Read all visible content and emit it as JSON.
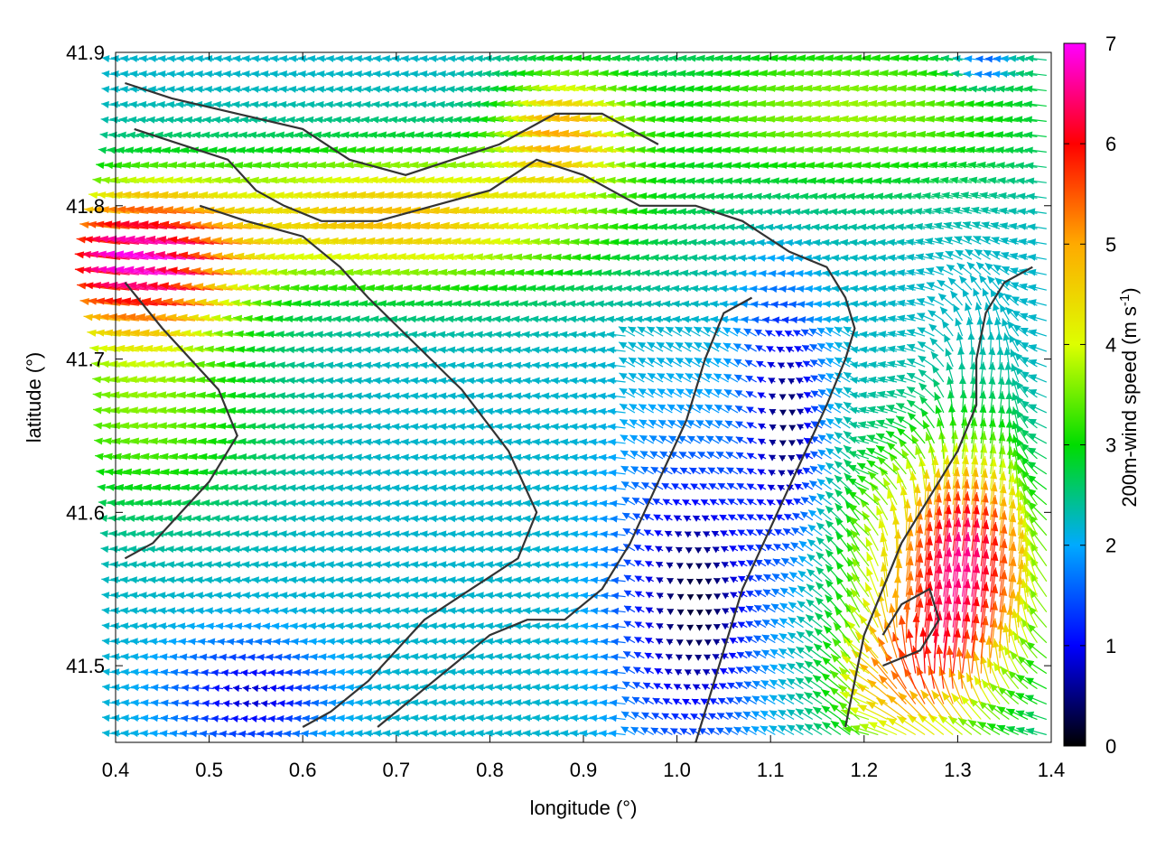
{
  "chart_data": {
    "type": "vector-field",
    "title": "",
    "xlabel": "longitude (°)",
    "ylabel": "latitude (°)",
    "xlim": [
      0.4,
      1.4
    ],
    "ylim": [
      41.45,
      41.9
    ],
    "xticks": [
      "0.4",
      "0.5",
      "0.6",
      "0.7",
      "0.8",
      "0.9",
      "1.0",
      "1.1",
      "1.2",
      "1.3",
      "1.4"
    ],
    "yticks": [
      "41.5",
      "41.6",
      "41.7",
      "41.8",
      "41.9"
    ],
    "colorbar": {
      "label": "200m-wind speed (m s",
      "label_sup": "-1",
      "label_end": ")",
      "range": [
        0,
        7
      ],
      "ticks": [
        "0",
        "1",
        "2",
        "3",
        "4",
        "5",
        "6",
        "7"
      ],
      "palette": [
        "#000000",
        "#0000ff",
        "#00aaff",
        "#00dd00",
        "#ddff00",
        "#ffaa00",
        "#ff0000",
        "#ff00ff"
      ]
    },
    "grid": {
      "x_step_deg": 0.01,
      "y_step_deg": 0.01
    },
    "wind_regions": [
      {
        "name": "strong westward jet NW",
        "speed_ms": 6.5,
        "direction": "west"
      },
      {
        "name": "orange band center",
        "speed_ms": 4.5,
        "direction": "west"
      },
      {
        "name": "weak valley center",
        "speed_ms": 0.5,
        "direction": "variable"
      },
      {
        "name": "strong northward SE",
        "speed_ms": 6.5,
        "direction": "north"
      }
    ],
    "contours": [
      [
        [
          0.41,
          41.88
        ],
        [
          0.46,
          41.87
        ],
        [
          0.53,
          41.86
        ],
        [
          0.6,
          41.85
        ],
        [
          0.65,
          41.83
        ],
        [
          0.71,
          41.82
        ],
        [
          0.76,
          41.83
        ],
        [
          0.81,
          41.84
        ],
        [
          0.87,
          41.86
        ],
        [
          0.92,
          41.86
        ],
        [
          0.95,
          41.85
        ],
        [
          0.98,
          41.84
        ]
      ],
      [
        [
          0.42,
          41.85
        ],
        [
          0.47,
          41.84
        ],
        [
          0.52,
          41.83
        ],
        [
          0.55,
          41.81
        ],
        [
          0.58,
          41.8
        ],
        [
          0.62,
          41.79
        ],
        [
          0.68,
          41.79
        ],
        [
          0.74,
          41.8
        ],
        [
          0.8,
          41.81
        ],
        [
          0.85,
          41.83
        ],
        [
          0.9,
          41.82
        ],
        [
          0.96,
          41.8
        ],
        [
          1.02,
          41.8
        ],
        [
          1.07,
          41.79
        ],
        [
          1.12,
          41.77
        ],
        [
          1.16,
          41.76
        ],
        [
          1.18,
          41.74
        ],
        [
          1.19,
          41.72
        ],
        [
          1.18,
          41.7
        ],
        [
          1.16,
          41.67
        ],
        [
          1.13,
          41.63
        ],
        [
          1.1,
          41.59
        ],
        [
          1.07,
          41.55
        ],
        [
          1.05,
          41.51
        ],
        [
          1.03,
          41.47
        ],
        [
          1.02,
          41.45
        ]
      ],
      [
        [
          0.41,
          41.75
        ],
        [
          0.45,
          41.72
        ],
        [
          0.48,
          41.7
        ],
        [
          0.51,
          41.68
        ],
        [
          0.53,
          41.65
        ],
        [
          0.5,
          41.62
        ],
        [
          0.47,
          41.6
        ],
        [
          0.44,
          41.58
        ],
        [
          0.41,
          41.57
        ]
      ],
      [
        [
          0.49,
          41.8
        ],
        [
          0.54,
          41.79
        ],
        [
          0.6,
          41.78
        ],
        [
          0.64,
          41.76
        ],
        [
          0.67,
          41.74
        ],
        [
          0.72,
          41.71
        ],
        [
          0.77,
          41.68
        ],
        [
          0.82,
          41.64
        ],
        [
          0.85,
          41.6
        ],
        [
          0.83,
          41.57
        ],
        [
          0.78,
          41.55
        ],
        [
          0.73,
          41.53
        ],
        [
          0.7,
          41.51
        ],
        [
          0.67,
          41.49
        ],
        [
          0.63,
          41.47
        ],
        [
          0.6,
          41.46
        ]
      ],
      [
        [
          0.68,
          41.46
        ],
        [
          0.72,
          41.48
        ],
        [
          0.76,
          41.5
        ],
        [
          0.8,
          41.52
        ],
        [
          0.84,
          41.53
        ],
        [
          0.88,
          41.53
        ],
        [
          0.92,
          41.55
        ],
        [
          0.95,
          41.58
        ],
        [
          0.98,
          41.62
        ],
        [
          1.01,
          41.66
        ],
        [
          1.03,
          41.7
        ],
        [
          1.05,
          41.73
        ],
        [
          1.08,
          41.74
        ]
      ],
      [
        [
          1.38,
          41.76
        ],
        [
          1.35,
          41.75
        ],
        [
          1.33,
          41.73
        ],
        [
          1.32,
          41.7
        ],
        [
          1.32,
          41.67
        ],
        [
          1.3,
          41.64
        ],
        [
          1.27,
          41.61
        ],
        [
          1.24,
          41.58
        ],
        [
          1.22,
          41.55
        ],
        [
          1.2,
          41.52
        ],
        [
          1.19,
          41.49
        ],
        [
          1.18,
          41.46
        ]
      ],
      [
        [
          1.22,
          41.5
        ],
        [
          1.26,
          41.51
        ],
        [
          1.28,
          41.53
        ],
        [
          1.27,
          41.55
        ],
        [
          1.24,
          41.54
        ],
        [
          1.22,
          41.52
        ]
      ]
    ]
  }
}
